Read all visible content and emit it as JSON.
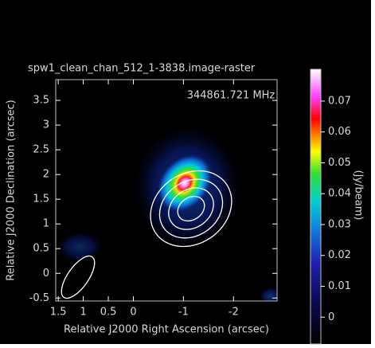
{
  "chart_data": {
    "type": "raster",
    "title": "spw1_clean_chan_512_1-3838.image-raster",
    "annotation": "344861.721 MHz",
    "xlabel": "Relative J2000 Right Ascension (arcsec)",
    "ylabel": "Relative J2000 Declination (arcsec)",
    "xlim": [
      1.55,
      -2.87
    ],
    "xticks": [
      1.5,
      1,
      0.5,
      0,
      -1,
      -2
    ],
    "ylim": [
      -0.56,
      3.92
    ],
    "yticks": [
      -0.5,
      0,
      0.5,
      1,
      1.5,
      2,
      2.5,
      3,
      3.5
    ],
    "colorbar": {
      "label": "(Jy/beam)",
      "lim": [
        -0.0087,
        0.0803
      ],
      "ticks": [
        0,
        0.01,
        0.02,
        0.03,
        0.04,
        0.05,
        0.06,
        0.07
      ]
    }
  }
}
